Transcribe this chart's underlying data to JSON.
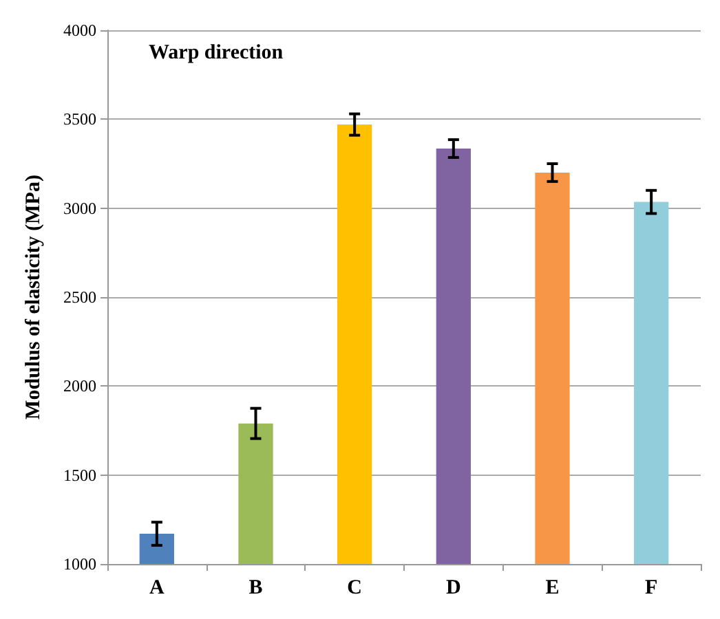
{
  "chart_data": {
    "type": "bar",
    "title": "Warp direction",
    "ylabel": "Modulus of elasticity (MPa)",
    "categories": [
      "A",
      "B",
      "C",
      "D",
      "E",
      "F"
    ],
    "values": [
      1170,
      1790,
      3470,
      3335,
      3200,
      3035
    ],
    "colors": [
      "#4f81bd",
      "#9bbb59",
      "#ffc000",
      "#8064a2",
      "#f79646",
      "#92cddc"
    ],
    "errors": [
      65,
      85,
      60,
      50,
      50,
      65
    ],
    "ylim": [
      1000,
      4000
    ],
    "yticks": [
      1000,
      1500,
      2000,
      2500,
      3000,
      3500,
      4000
    ],
    "grid": "y"
  }
}
